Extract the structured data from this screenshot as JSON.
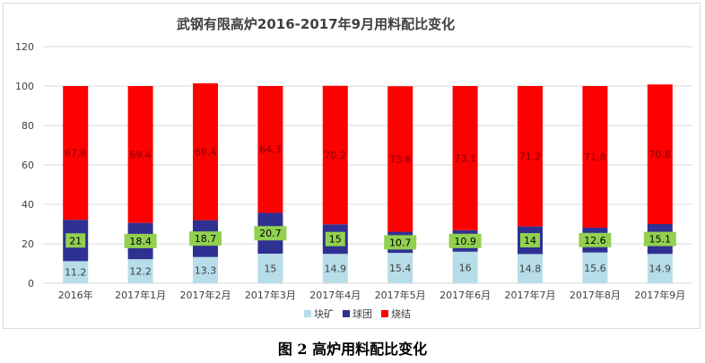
{
  "caption": "图 2    高炉用料配比变化",
  "chart_data": {
    "type": "bar",
    "stacked": true,
    "title": "武钢有限高炉2016-2017年9月用料配比变化",
    "xlabel": "",
    "ylabel": "",
    "ylim": [
      0,
      120
    ],
    "yticks": [
      0,
      20,
      40,
      60,
      80,
      100,
      120
    ],
    "grid": true,
    "legend_position": "bottom",
    "categories": [
      "2016年",
      "2017年1月",
      "2017年2月",
      "2017年3月",
      "2017年4月",
      "2017年5月",
      "2017年6月",
      "2017年7月",
      "2017年8月",
      "2017年9月"
    ],
    "series": [
      {
        "name": "块矿",
        "color": "#b7dde8",
        "label_color": "#404040",
        "values": [
          11.2,
          12.2,
          13.3,
          15,
          14.9,
          15.4,
          16,
          14.8,
          15.6,
          14.9
        ]
      },
      {
        "name": "球团",
        "color": "#2e3192",
        "label_color": "#000000",
        "label_bg": "#92d050",
        "values": [
          21,
          18.4,
          18.7,
          20.7,
          15,
          10.7,
          10.9,
          14,
          12.6,
          15.1
        ]
      },
      {
        "name": "烧结",
        "color": "#ff0000",
        "label_color": "#7f0000",
        "values": [
          67.8,
          69.4,
          69.4,
          64.3,
          70.2,
          73.8,
          73.1,
          71.2,
          71.8,
          70.8
        ]
      }
    ]
  }
}
